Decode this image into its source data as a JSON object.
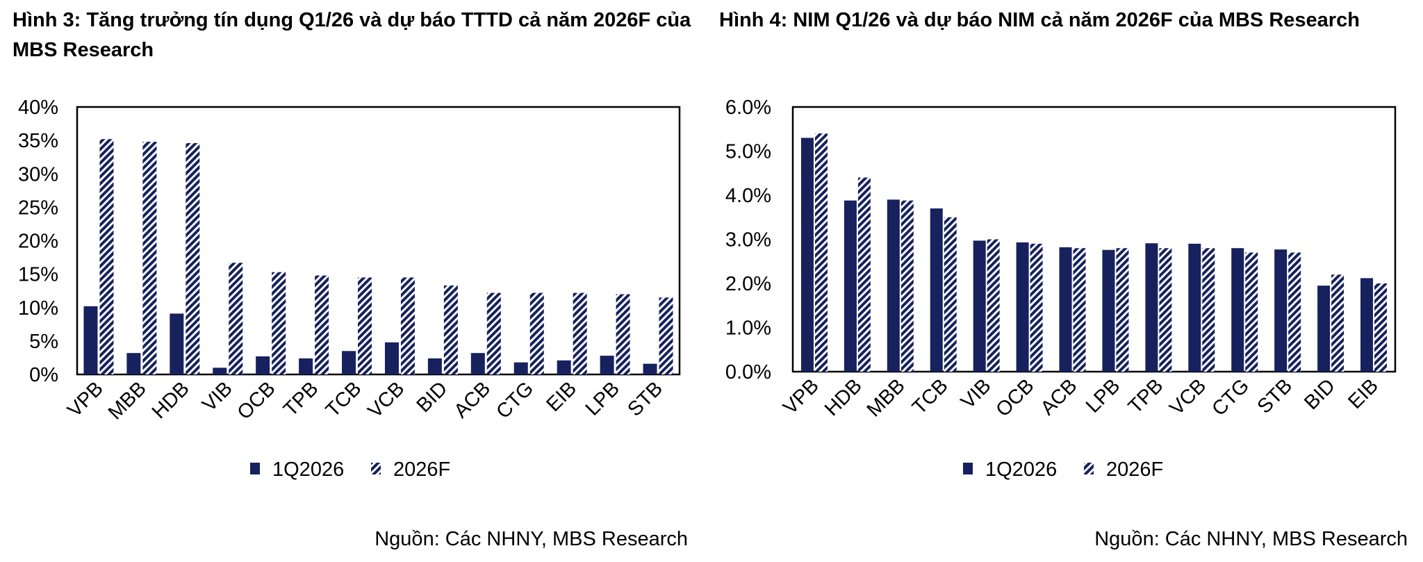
{
  "chart_data": [
    {
      "type": "bar",
      "title": "Hình 3: Tăng trưởng tín dụng Q1/26 và dự báo TTTD cả năm 2026F của MBS Research",
      "categories": [
        "VPB",
        "MBB",
        "HDB",
        "VIB",
        "OCB",
        "TPB",
        "TCB",
        "VCB",
        "BID",
        "ACB",
        "CTG",
        "EIB",
        "LPB",
        "STB"
      ],
      "series": [
        {
          "name": "1Q2026",
          "values": [
            10.2,
            3.2,
            9.1,
            1.0,
            2.7,
            2.4,
            3.5,
            4.8,
            2.4,
            3.2,
            1.8,
            2.1,
            2.8,
            1.6
          ]
        },
        {
          "name": "2026F",
          "values": [
            35.2,
            34.8,
            34.6,
            16.7,
            15.3,
            14.8,
            14.5,
            14.5,
            13.3,
            12.2,
            12.2,
            12.2,
            12.0,
            11.5
          ]
        }
      ],
      "yticks": [
        "0%",
        "5%",
        "10%",
        "15%",
        "20%",
        "25%",
        "30%",
        "35%",
        "40%"
      ],
      "ylim": [
        0,
        40
      ],
      "xlabel": "",
      "ylabel": "",
      "grid": false,
      "legend": "bottom",
      "source": "Nguồn: Các NHNY, MBS Research"
    },
    {
      "type": "bar",
      "title": "Hình 4: NIM Q1/26 và dự báo NIM cả năm 2026F của MBS Research",
      "categories": [
        "VPB",
        "HDB",
        "MBB",
        "TCB",
        "VIB",
        "OCB",
        "ACB",
        "LPB",
        "TPB",
        "VCB",
        "CTG",
        "STB",
        "BID",
        "EIB"
      ],
      "series": [
        {
          "name": "1Q2026",
          "values": [
            5.3,
            3.88,
            3.9,
            3.7,
            2.97,
            2.93,
            2.82,
            2.76,
            2.91,
            2.9,
            2.8,
            2.77,
            1.95,
            2.12
          ]
        },
        {
          "name": "2026F",
          "values": [
            5.4,
            4.4,
            3.88,
            3.5,
            3.0,
            2.9,
            2.8,
            2.8,
            2.8,
            2.8,
            2.7,
            2.7,
            2.2,
            2.0
          ]
        }
      ],
      "yticks": [
        "0.0%",
        "1.0%",
        "2.0%",
        "3.0%",
        "4.0%",
        "5.0%",
        "6.0%"
      ],
      "ylim": [
        0,
        6
      ],
      "xlabel": "",
      "ylabel": "",
      "grid": false,
      "legend": "bottom",
      "source": "Nguồn: Các NHNY, MBS Research"
    }
  ],
  "colors": {
    "series1": "#16215e",
    "series2_stripe": "#16215e",
    "series2_bg": "#ffffff"
  }
}
